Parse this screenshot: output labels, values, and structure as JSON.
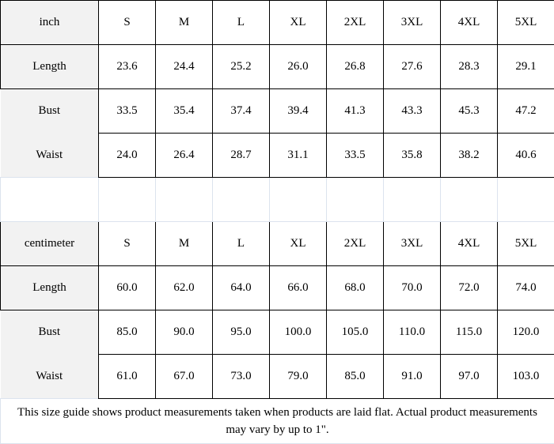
{
  "sizes": [
    "S",
    "M",
    "L",
    "XL",
    "2XL",
    "3XL",
    "4XL",
    "5XL"
  ],
  "inch": {
    "unit": "inch",
    "rows": [
      {
        "label": "Length",
        "values": [
          "23.6",
          "24.4",
          "25.2",
          "26.0",
          "26.8",
          "27.6",
          "28.3",
          "29.1"
        ]
      },
      {
        "label": "Bust",
        "values": [
          "33.5",
          "35.4",
          "37.4",
          "39.4",
          "41.3",
          "43.3",
          "45.3",
          "47.2"
        ]
      },
      {
        "label": "Waist",
        "values": [
          "24.0",
          "26.4",
          "28.7",
          "31.1",
          "33.5",
          "35.8",
          "38.2",
          "40.6"
        ]
      }
    ]
  },
  "centimeter": {
    "unit": "centimeter",
    "rows": [
      {
        "label": "Length",
        "values": [
          "60.0",
          "62.0",
          "64.0",
          "66.0",
          "68.0",
          "70.0",
          "72.0",
          "74.0"
        ]
      },
      {
        "label": "Bust",
        "values": [
          "85.0",
          "90.0",
          "95.0",
          "100.0",
          "105.0",
          "110.0",
          "115.0",
          "120.0"
        ]
      },
      {
        "label": "Waist",
        "values": [
          "61.0",
          "67.0",
          "73.0",
          "79.0",
          "85.0",
          "91.0",
          "97.0",
          "103.0"
        ]
      }
    ]
  },
  "note": "This size guide shows product measurements taken when products are laid flat. Actual product measurements may vary by up to 1\"."
}
